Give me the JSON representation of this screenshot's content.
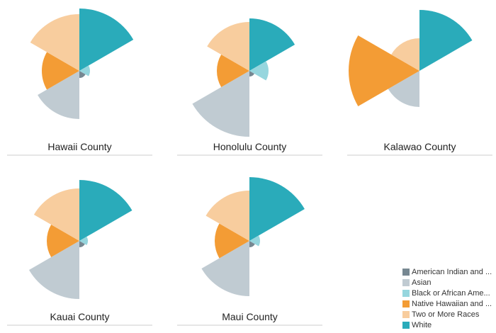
{
  "chart_data": {
    "type": "polar-area",
    "value_unit": "relative radius",
    "categories": [
      "White",
      "Black or African Ame...",
      "American Indian and ...",
      "Asian",
      "Native Hawaiian and ...",
      "Two or More Races"
    ],
    "colors": {
      "White": "#2aabba",
      "Black or African Ame...": "#96d6de",
      "American Indian and ...": "#778892",
      "Asian": "#c0cbd2",
      "Native Hawaiian and ...": "#f39c35",
      "Two or More Races": "#f8cd9e"
    },
    "panels": [
      {
        "title": "Hawaii County",
        "values": [
          88,
          15,
          10,
          68,
          53,
          80
        ]
      },
      {
        "title": "Honolulu County",
        "values": [
          74,
          27,
          8,
          93,
          46,
          69
        ]
      },
      {
        "title": "Kalawao County",
        "values": [
          86,
          0,
          0,
          51,
          100,
          46
        ]
      },
      {
        "title": "Kauai County",
        "values": [
          86,
          12,
          9,
          82,
          46,
          74
        ]
      },
      {
        "title": "Maui County",
        "values": [
          90,
          15,
          9,
          78,
          49,
          71
        ]
      }
    ],
    "legend": [
      "American Indian and ...",
      "Asian",
      "Black or African Ame...",
      "Native Hawaiian and ...",
      "Two or More Races",
      "White"
    ],
    "legend_position": "bottom-right"
  }
}
